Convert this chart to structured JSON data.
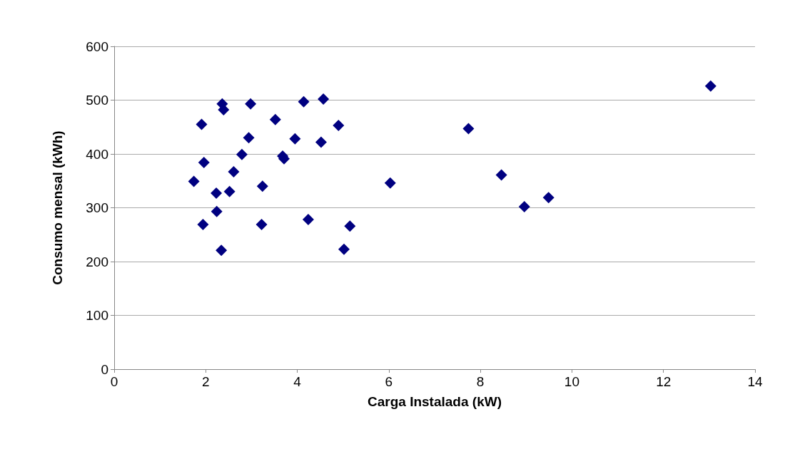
{
  "chart_data": {
    "type": "scatter",
    "xlabel": "Carga Instalada (kW)",
    "ylabel": "Consumo mensal (kWh)",
    "x": [
      1.74,
      1.91,
      1.96,
      1.94,
      2.23,
      2.24,
      2.34,
      2.36,
      2.39,
      2.52,
      2.61,
      2.79,
      2.94,
      2.98,
      3.24,
      3.22,
      3.52,
      3.68,
      3.71,
      3.95,
      4.14,
      4.24,
      4.57,
      4.52,
      4.9,
      5.15,
      5.02,
      6.03,
      7.74,
      8.46,
      8.96,
      9.49,
      13.03
    ],
    "series": [
      {
        "color": "#000080",
        "values": [
          349,
          455,
          384,
          269,
          327,
          293,
          221,
          493,
          482,
          330,
          367,
          399,
          430,
          493,
          340,
          269,
          464,
          396,
          391,
          428,
          497,
          278,
          502,
          422,
          453,
          266,
          223,
          346,
          447,
          361,
          302,
          319,
          526
        ]
      }
    ],
    "xlim": [
      0,
      14
    ],
    "xticks": [
      0,
      2,
      4,
      6,
      8,
      10,
      12,
      14
    ],
    "ylim": [
      0,
      600
    ],
    "yticks": [
      0,
      100,
      200,
      300,
      400,
      500,
      600
    ],
    "grid": "y",
    "marker": "diamond"
  }
}
